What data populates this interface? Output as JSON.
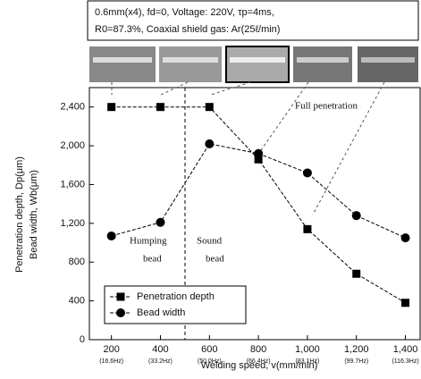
{
  "chart_data": {
    "type": "line",
    "header_lines": [
      "0.6mm(x4), fd=0, Voltage: 220V, τp=4ms,",
      "R0=87.3%, Coaxial shield gas: Ar(25ℓ/min)"
    ],
    "x_label": "Welding speed, v(mm/min)",
    "y_label_lines": [
      "Penetration depth, Dp(μm)",
      "Bead width, Wb(μm)"
    ],
    "x": [
      200,
      400,
      600,
      800,
      1000,
      1200,
      1400
    ],
    "xtick_frequencies": [
      "(16.6Hz)",
      "(33.2Hz)",
      "(50.0Hz)",
      "(66.4Hz)",
      "(83.1Hz)",
      "(99.7Hz)",
      "(116.3Hz)"
    ],
    "series": [
      {
        "name": "Penetration depth",
        "color": "#000000",
        "marker": "square",
        "values": [
          2400,
          2400,
          2400,
          1860,
          1140,
          680,
          380
        ]
      },
      {
        "name": "Bead width",
        "color": "#000000",
        "marker": "circle",
        "values": [
          1070,
          1210,
          2020,
          1920,
          1720,
          1280,
          1050
        ]
      }
    ],
    "xlim": [
      110,
      1460
    ],
    "ylim": [
      0,
      2600
    ],
    "xticks": [
      200,
      400,
      600,
      800,
      {
        "value": 1000,
        "label": "1,000"
      },
      {
        "value": 1200,
        "label": "1,200"
      },
      {
        "value": 1400,
        "label": "1,400"
      }
    ],
    "yticks": [
      0,
      400,
      800,
      {
        "value": 1200,
        "label": "1,200"
      },
      {
        "value": 1600,
        "label": "1,600"
      },
      {
        "value": 2000,
        "label": "2,000"
      },
      {
        "value": 2400,
        "label": "2,400"
      }
    ],
    "annotations": {
      "full_penetration": "Full penetration",
      "humping": [
        "Humping",
        "bead"
      ],
      "sound": [
        "Sound",
        "bead"
      ]
    },
    "legend_position": "lower left"
  }
}
